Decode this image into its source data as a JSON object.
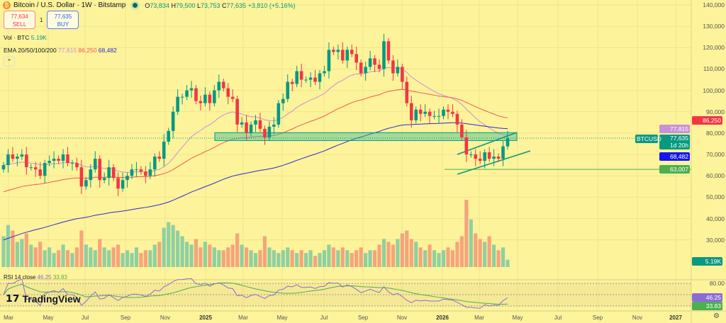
{
  "header": {
    "icon": "bitcoin-icon",
    "title": "Bitcoin / U.S. Dollar · 1W · Bitstamp",
    "open_label": "O",
    "open": "73,834",
    "high_label": "H",
    "high": "79,500",
    "low_label": "L",
    "low": "73,753",
    "close_label": "C",
    "close": "77,635",
    "change": "+3,810 (+5.16%)"
  },
  "trade": {
    "sell_price": "77,634",
    "sell_label": "SELL",
    "spread": "1",
    "buy_price": "77,635",
    "buy_label": "BUY"
  },
  "volume_legend": {
    "label": "Vol · BTC",
    "value": "5.19K"
  },
  "ema_legend": {
    "label": "EMA 20/50/100/200",
    "v20": "77,815",
    "v50": "86,250",
    "v100": "68,482"
  },
  "rsi_legend": {
    "label": "RSI 14 close",
    "rsi": "46.25",
    "ma": "33.83"
  },
  "logo": "TradingView",
  "price_axis": [
    "140,000",
    "130,000",
    "120,000",
    "110,000",
    "100,000",
    "90,000",
    "80,000",
    "70,000",
    "60,000",
    "50,000",
    "40,000",
    "30,000"
  ],
  "rsi_axis": [
    "80.00"
  ],
  "tags": {
    "ema50": "86,250",
    "ema20": "77,815",
    "symbol": "BTCUSD",
    "price": "77,635",
    "countdown": "1d 20h",
    "ema100": "68,482",
    "level": "63,007",
    "volume": "5.19K",
    "rsi": "46.25",
    "rsi_ma": "33.83"
  },
  "time_axis": [
    {
      "t": "Mar",
      "b": false
    },
    {
      "t": "May",
      "b": false
    },
    {
      "t": "Jul",
      "b": false
    },
    {
      "t": "Sep",
      "b": false
    },
    {
      "t": "Nov",
      "b": false
    },
    {
      "t": "2025",
      "b": true
    },
    {
      "t": "Mar",
      "b": false
    },
    {
      "t": "May",
      "b": false
    },
    {
      "t": "Jul",
      "b": false
    },
    {
      "t": "Sep",
      "b": false
    },
    {
      "t": "Nov",
      "b": false
    },
    {
      "t": "2026",
      "b": true
    },
    {
      "t": "Mar",
      "b": false
    },
    {
      "t": "May",
      "b": false
    },
    {
      "t": "Jul",
      "b": false
    },
    {
      "t": "Sep",
      "b": false
    },
    {
      "t": "Nov",
      "b": false
    },
    {
      "t": "2027",
      "b": true
    }
  ],
  "colors": {
    "background": "#fdf39a",
    "up": "#089981",
    "down": "#f23645",
    "ema20": "#c792d8",
    "ema50": "#f0595a",
    "ema100": "#2b2bd8",
    "rsi": "#8e6ad8",
    "rsi_ma": "#4caf50"
  },
  "chart_data": {
    "type": "candlestick",
    "interval": "1W",
    "ylim": [
      0,
      140000
    ],
    "closes_k": [
      65,
      70,
      68,
      69,
      70,
      64,
      64,
      63,
      60,
      66,
      67,
      68,
      67,
      70,
      66,
      66,
      64,
      55,
      58,
      63,
      68,
      58,
      59,
      64,
      59,
      54,
      58,
      60,
      63,
      63,
      62,
      60,
      63,
      69,
      68,
      76,
      81,
      90,
      97,
      97,
      100,
      101,
      95,
      94,
      98,
      94,
      100,
      104,
      101,
      97,
      96,
      84,
      85,
      80,
      84,
      86,
      82,
      78,
      83,
      84,
      94,
      96,
      104,
      103,
      109,
      105,
      105,
      106,
      104,
      108,
      109,
      119,
      118,
      119,
      114,
      119,
      117,
      113,
      108,
      111,
      115,
      112,
      110,
      123,
      114,
      108,
      111,
      104,
      94,
      86,
      91,
      89,
      90,
      88,
      88,
      88,
      91,
      90,
      89,
      84,
      78,
      70,
      70,
      68,
      67,
      71,
      68,
      69,
      68,
      73.8,
      77.635
    ],
    "volume_k": [
      22,
      30,
      26,
      18,
      20,
      24,
      16,
      14,
      18,
      12,
      14,
      10,
      12,
      16,
      12,
      10,
      14,
      26,
      16,
      14,
      12,
      20,
      14,
      12,
      14,
      16,
      10,
      12,
      10,
      14,
      10,
      12,
      12,
      16,
      18,
      28,
      32,
      30,
      26,
      22,
      18,
      16,
      20,
      14,
      18,
      16,
      14,
      12,
      12,
      14,
      16,
      24,
      16,
      14,
      12,
      10,
      12,
      22,
      14,
      12,
      10,
      12,
      14,
      12,
      10,
      12,
      10,
      12,
      8,
      10,
      12,
      16,
      14,
      12,
      14,
      12,
      10,
      12,
      14,
      10,
      12,
      12,
      16,
      20,
      18,
      16,
      20,
      24,
      26,
      20,
      18,
      14,
      12,
      16,
      12,
      10,
      12,
      14,
      12,
      18,
      22,
      48,
      34,
      24,
      20,
      18,
      22,
      16,
      12,
      14,
      5.19
    ],
    "ema_periods": [
      20,
      50,
      100
    ],
    "horizontal_level": 63007,
    "zone": [
      76500,
      80200
    ],
    "rsi_period": 14,
    "rsi_levels": [
      70,
      30
    ]
  }
}
